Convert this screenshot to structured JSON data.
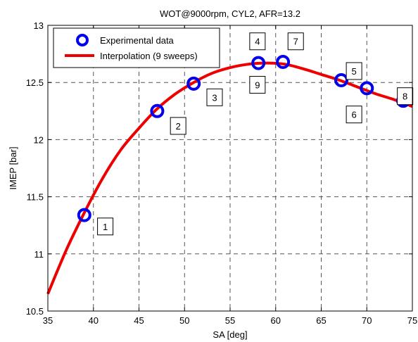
{
  "chart_data": {
    "type": "line",
    "title": "WOT@9000rpm, CYL2, AFR=13.2",
    "xlabel": "SA [deg]",
    "ylabel": "IMEP [bar]",
    "xlim": [
      35,
      75
    ],
    "ylim": [
      10.5,
      13
    ],
    "xticks": [
      "35",
      "40",
      "45",
      "50",
      "55",
      "60",
      "65",
      "70",
      "75"
    ],
    "yticks": [
      "10.5",
      "11",
      "11.5",
      "12",
      "12.5",
      "13"
    ],
    "grid": true,
    "legend_position": "top-left",
    "series": [
      {
        "name": "Experimental data",
        "style": "markers",
        "color": "#0000ee",
        "x": [
          39,
          47,
          51,
          58.1,
          60.8,
          67.2,
          70,
          74
        ],
        "y": [
          11.34,
          12.25,
          12.49,
          12.67,
          12.68,
          12.52,
          12.45,
          12.34
        ]
      },
      {
        "name": "Interpolation (9 sweeps)",
        "style": "line",
        "color": "#ee0000",
        "x": [
          35,
          37,
          39,
          41,
          43,
          45,
          47,
          49,
          51,
          53,
          55,
          57,
          59,
          61,
          63,
          65,
          67,
          69,
          71,
          73,
          75
        ],
        "y": [
          10.65,
          11.03,
          11.36,
          11.66,
          11.91,
          12.1,
          12.27,
          12.4,
          12.5,
          12.58,
          12.63,
          12.66,
          12.67,
          12.66,
          12.62,
          12.57,
          12.52,
          12.46,
          12.4,
          12.35,
          12.29
        ]
      }
    ],
    "annotations": [
      {
        "text": "1",
        "x": 41.3,
        "y": 11.24
      },
      {
        "text": "2",
        "x": 49.3,
        "y": 12.12
      },
      {
        "text": "3",
        "x": 53.3,
        "y": 12.37
      },
      {
        "text": "4",
        "x": 58.0,
        "y": 12.86
      },
      {
        "text": "9",
        "x": 58.0,
        "y": 12.48
      },
      {
        "text": "7",
        "x": 62.2,
        "y": 12.86
      },
      {
        "text": "5",
        "x": 68.6,
        "y": 12.6
      },
      {
        "text": "6",
        "x": 68.6,
        "y": 12.22
      },
      {
        "text": "8",
        "x": 74.2,
        "y": 12.38
      }
    ]
  }
}
